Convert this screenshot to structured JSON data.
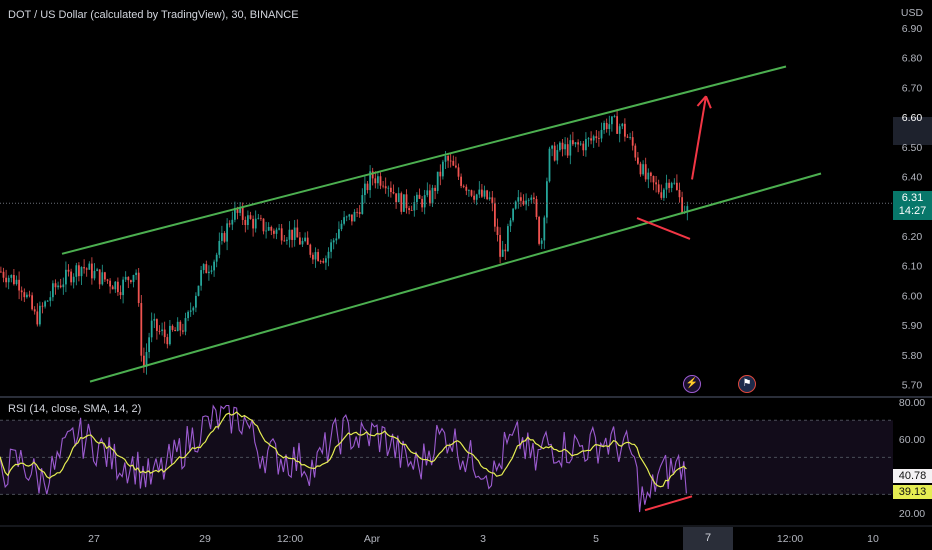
{
  "chart_data": [
    {
      "type": "candlestick",
      "title": "DOT / US Dollar (calculated by TradingView), 30, BINANCE",
      "currency_label": "USD",
      "y_ticks": [
        "6.90",
        "6.80",
        "6.70",
        "6.60",
        "6.50",
        "6.40",
        "6.30",
        "6.20",
        "6.10",
        "6.00",
        "5.90",
        "5.80",
        "5.70"
      ],
      "ylim": [
        5.665,
        6.96
      ],
      "x_ticks": [
        "27",
        "29",
        "12:00",
        "Apr",
        "3",
        "5",
        "7",
        "12:00",
        "10"
      ],
      "last_price": "6.31",
      "countdown": "14:27",
      "highlighted_y_tick": "6.60",
      "price_anchors": [
        [
          0,
          6.08
        ],
        [
          20,
          6.04
        ],
        [
          35,
          5.92
        ],
        [
          55,
          6.03
        ],
        [
          80,
          6.1
        ],
        [
          100,
          6.06
        ],
        [
          120,
          6.03
        ],
        [
          135,
          6.09
        ],
        [
          142,
          5.74
        ],
        [
          150,
          5.9
        ],
        [
          165,
          5.86
        ],
        [
          185,
          5.9
        ],
        [
          200,
          6.07
        ],
        [
          215,
          6.13
        ],
        [
          232,
          6.28
        ],
        [
          250,
          6.25
        ],
        [
          270,
          6.22
        ],
        [
          290,
          6.21
        ],
        [
          310,
          6.15
        ],
        [
          325,
          6.13
        ],
        [
          340,
          6.24
        ],
        [
          355,
          6.27
        ],
        [
          370,
          6.4
        ],
        [
          385,
          6.39
        ],
        [
          400,
          6.31
        ],
        [
          415,
          6.31
        ],
        [
          430,
          6.33
        ],
        [
          445,
          6.46
        ],
        [
          460,
          6.39
        ],
        [
          475,
          6.34
        ],
        [
          490,
          6.32
        ],
        [
          500,
          6.12
        ],
        [
          515,
          6.3
        ],
        [
          530,
          6.36
        ],
        [
          540,
          6.16
        ],
        [
          548,
          6.47
        ],
        [
          560,
          6.49
        ],
        [
          575,
          6.5
        ],
        [
          590,
          6.52
        ],
        [
          605,
          6.58
        ],
        [
          620,
          6.57
        ],
        [
          632,
          6.5
        ],
        [
          645,
          6.39
        ],
        [
          660,
          6.35
        ],
        [
          670,
          6.4
        ],
        [
          680,
          6.31
        ],
        [
          688,
          6.28
        ]
      ],
      "annotations": [
        {
          "type": "trendline",
          "color": "#4caf50",
          "from": [
            62,
            6.14
          ],
          "to": [
            786,
            6.77
          ]
        },
        {
          "type": "trendline",
          "color": "#4caf50",
          "from": [
            90,
            5.71
          ],
          "to": [
            821,
            6.41
          ]
        },
        {
          "type": "trendline",
          "color": "#f23645",
          "from": [
            637,
            6.26
          ],
          "to": [
            690,
            6.19
          ]
        },
        {
          "type": "arrow",
          "color": "#f23645",
          "from": [
            692,
            6.39
          ],
          "to": [
            706,
            6.67
          ]
        }
      ]
    },
    {
      "type": "line",
      "title": "RSI (14, close, SMA, 14, 2)",
      "series": [
        {
          "name": "RSI",
          "color": "#9c5bd0",
          "current": "40.78"
        },
        {
          "name": "SMA",
          "color": "#e5ed52",
          "current": "39.13"
        }
      ],
      "y_ticks": [
        "80.00",
        "60.00",
        "20.00"
      ],
      "ylim": [
        13.5,
        81.5
      ],
      "bands": [
        70,
        50,
        30
      ],
      "rsi_anchors": [
        [
          0,
          42
        ],
        [
          20,
          48
        ],
        [
          40,
          38
        ],
        [
          55,
          44
        ],
        [
          75,
          62
        ],
        [
          95,
          57
        ],
        [
          115,
          48
        ],
        [
          135,
          46
        ],
        [
          150,
          38
        ],
        [
          165,
          44
        ],
        [
          180,
          53
        ],
        [
          200,
          65
        ],
        [
          215,
          70
        ],
        [
          232,
          72
        ],
        [
          245,
          70
        ],
        [
          260,
          53
        ],
        [
          280,
          50
        ],
        [
          300,
          48
        ],
        [
          315,
          44
        ],
        [
          330,
          58
        ],
        [
          345,
          64
        ],
        [
          360,
          60
        ],
        [
          375,
          63
        ],
        [
          390,
          58
        ],
        [
          405,
          48
        ],
        [
          420,
          45
        ],
        [
          435,
          60
        ],
        [
          450,
          62
        ],
        [
          465,
          50
        ],
        [
          480,
          47
        ],
        [
          495,
          40
        ],
        [
          505,
          55
        ],
        [
          520,
          60
        ],
        [
          535,
          46
        ],
        [
          545,
          58
        ],
        [
          560,
          55
        ],
        [
          575,
          56
        ],
        [
          590,
          56
        ],
        [
          605,
          59
        ],
        [
          620,
          56
        ],
        [
          632,
          52
        ],
        [
          640,
          30
        ],
        [
          648,
          24
        ],
        [
          658,
          42
        ],
        [
          668,
          42
        ],
        [
          680,
          46
        ],
        [
          688,
          40
        ]
      ],
      "annotations": [
        {
          "type": "trendline",
          "color": "#f23645",
          "from": [
            645,
            21.5
          ],
          "to": [
            692,
            29
          ]
        }
      ]
    }
  ]
}
